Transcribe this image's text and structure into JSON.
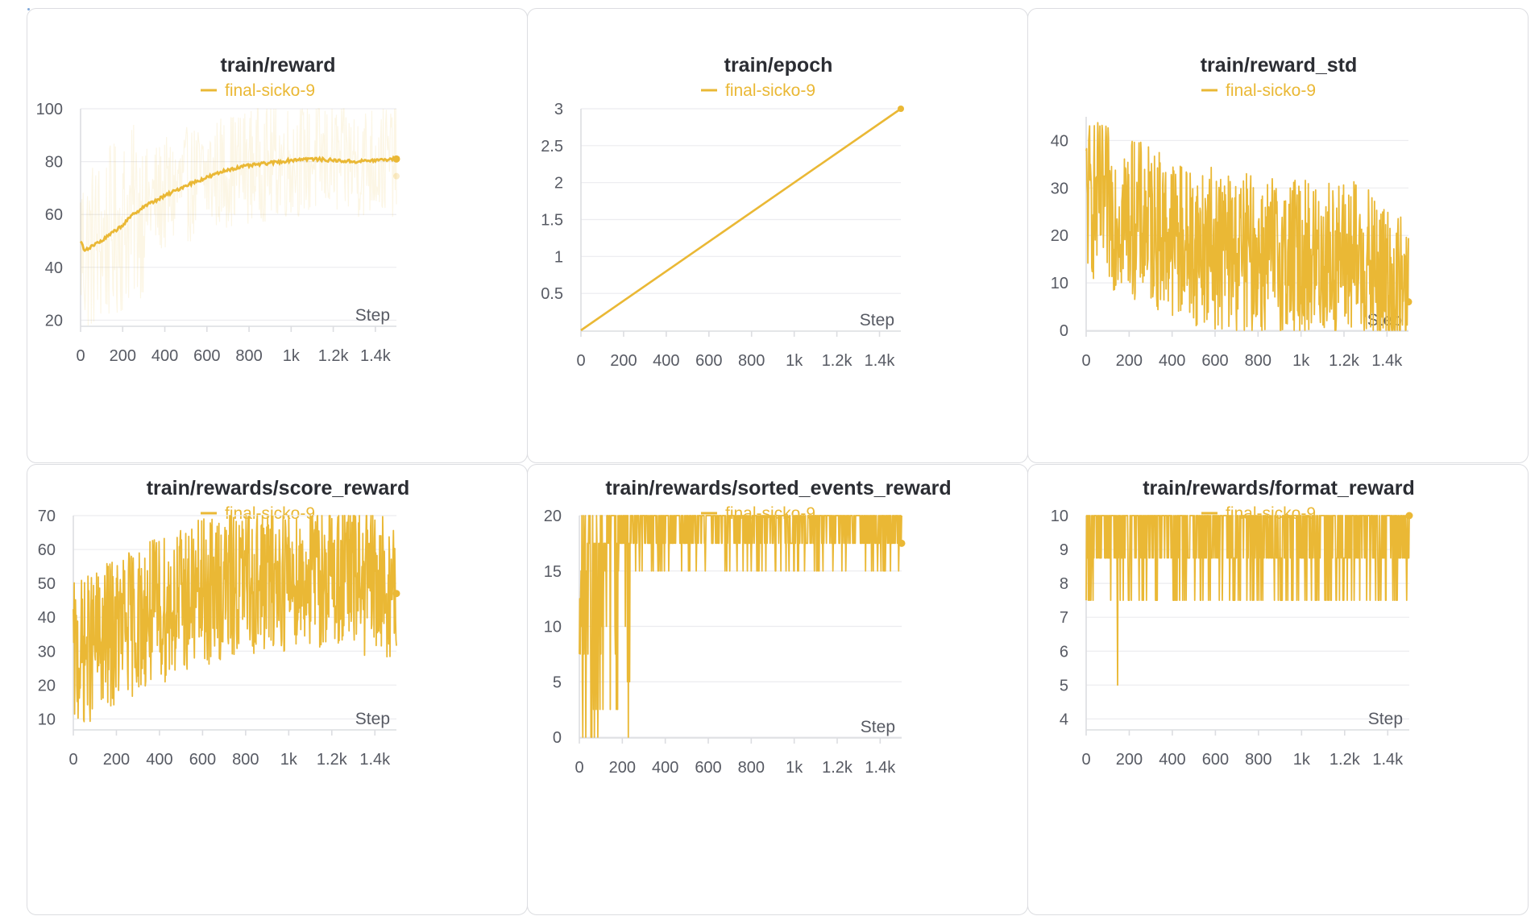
{
  "accent_color": "#eab835",
  "xlabel": "Step",
  "x_tick_labels": [
    "0",
    "200",
    "400",
    "600",
    "800",
    "1k",
    "1.2k",
    "1.4k"
  ],
  "charts": [
    {
      "id": "reward",
      "title": "train/reward",
      "legend": "final-sicko-9",
      "type": "line",
      "y_ticks": [
        "20",
        "40",
        "60",
        "80",
        "100"
      ],
      "ylim": [
        18,
        100
      ]
    },
    {
      "id": "epoch",
      "title": "train/epoch",
      "legend": "final-sicko-9",
      "type": "line",
      "y_ticks": [
        "0.5",
        "1",
        "1.5",
        "2",
        "2.5",
        "3"
      ],
      "ylim": [
        0,
        3
      ]
    },
    {
      "id": "reward_std",
      "title": "train/reward_std",
      "legend": "final-sicko-9",
      "type": "line",
      "y_ticks": [
        "0",
        "10",
        "20",
        "30",
        "40"
      ],
      "ylim": [
        0,
        45
      ]
    },
    {
      "id": "score_reward",
      "title": "train/rewards/score_reward",
      "legend": "final-sicko-9",
      "type": "line",
      "y_ticks": [
        "10",
        "20",
        "30",
        "40",
        "50",
        "60",
        "70"
      ],
      "ylim": [
        7,
        70
      ]
    },
    {
      "id": "sorted_events_reward",
      "title": "train/rewards/sorted_events_reward",
      "legend": "final-sicko-9",
      "type": "line",
      "y_ticks": [
        "0",
        "5",
        "10",
        "15",
        "20"
      ],
      "ylim": [
        0,
        20
      ]
    },
    {
      "id": "format_reward",
      "title": "train/rewards/format_reward",
      "legend": "final-sicko-9",
      "type": "line",
      "y_ticks": [
        "4",
        "5",
        "6",
        "7",
        "8",
        "9",
        "10"
      ],
      "ylim": [
        3.7,
        10
      ]
    }
  ],
  "chart_data": [
    {
      "type": "line",
      "title": "train/reward",
      "xlabel": "Step",
      "xlim": [
        0,
        1500
      ],
      "ylim": [
        18,
        100
      ],
      "series": [
        {
          "name": "final-sicko-9",
          "x": [
            0,
            20,
            50,
            100,
            150,
            200,
            250,
            300,
            400,
            500,
            600,
            700,
            800,
            900,
            1000,
            1050,
            1100,
            1200,
            1300,
            1400,
            1500
          ],
          "values": [
            50,
            46,
            48,
            50,
            53,
            56,
            60,
            63,
            67,
            71,
            74,
            77,
            78.5,
            79.5,
            80.5,
            81,
            81,
            80.5,
            80,
            80.5,
            81
          ]
        }
      ]
    },
    {
      "type": "line",
      "title": "train/epoch",
      "xlabel": "Step",
      "xlim": [
        0,
        1500
      ],
      "ylim": [
        0,
        3
      ],
      "series": [
        {
          "name": "final-sicko-9",
          "x": [
            0,
            1500
          ],
          "values": [
            0,
            3
          ]
        }
      ]
    },
    {
      "type": "line",
      "title": "train/reward_std",
      "xlabel": "Step",
      "xlim": [
        0,
        1500
      ],
      "ylim": [
        0,
        45
      ],
      "series": [
        {
          "name": "final-sicko-9",
          "x": [
            0,
            250,
            500,
            750,
            1000,
            1250,
            1500
          ],
          "values": [
            28,
            23,
            18,
            16,
            15,
            15,
            6
          ]
        }
      ]
    },
    {
      "type": "line",
      "title": "train/rewards/score_reward",
      "xlabel": "Step",
      "xlim": [
        0,
        1500
      ],
      "ylim": [
        7,
        70
      ],
      "series": [
        {
          "name": "final-sicko-9",
          "x": [
            0,
            250,
            500,
            750,
            1000,
            1250,
            1500
          ],
          "values": [
            28,
            38,
            45,
            50,
            52,
            53,
            47
          ]
        }
      ]
    },
    {
      "type": "line",
      "title": "train/rewards/sorted_events_reward",
      "xlabel": "Step",
      "xlim": [
        0,
        1500
      ],
      "ylim": [
        0,
        20
      ],
      "series": [
        {
          "name": "final-sicko-9",
          "x": [
            0,
            100,
            200,
            300,
            500,
            800,
            1100,
            1500
          ],
          "values": [
            10,
            12,
            15,
            17.5,
            18,
            18.5,
            18.5,
            17.5
          ]
        }
      ]
    },
    {
      "type": "line",
      "title": "train/rewards/format_reward",
      "xlabel": "Step",
      "xlim": [
        0,
        1500
      ],
      "ylim": [
        3.7,
        10
      ],
      "series": [
        {
          "name": "final-sicko-9",
          "x": [
            0,
            100,
            200,
            500,
            1000,
            1500
          ],
          "values": [
            8.8,
            9.2,
            9.5,
            9.6,
            9.6,
            10
          ]
        }
      ]
    }
  ]
}
